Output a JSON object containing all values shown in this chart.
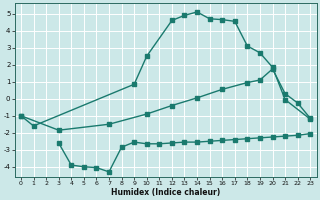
{
  "xlabel": "Humidex (Indice chaleur)",
  "bg_color": "#cce8e8",
  "grid_color": "#ffffff",
  "line_color": "#1a7a6e",
  "ylim": [
    -4.6,
    5.6
  ],
  "xlim": [
    -0.5,
    23.5
  ],
  "yticks": [
    -4,
    -3,
    -2,
    -1,
    0,
    1,
    2,
    3,
    4,
    5
  ],
  "xticks": [
    0,
    1,
    2,
    3,
    4,
    5,
    6,
    7,
    8,
    9,
    10,
    11,
    12,
    13,
    14,
    15,
    16,
    17,
    18,
    19,
    20,
    21,
    22,
    23
  ],
  "curve1_x": [
    0,
    1,
    9,
    10,
    12,
    13,
    14,
    15,
    16,
    17,
    18,
    19,
    20,
    21,
    23
  ],
  "curve1_y": [
    -1.0,
    -1.6,
    0.85,
    2.5,
    4.6,
    4.9,
    5.1,
    4.7,
    4.65,
    4.55,
    3.1,
    2.7,
    1.85,
    -0.05,
    -1.2
  ],
  "curve2_x": [
    0,
    3,
    7,
    10,
    12,
    14,
    16,
    18,
    19,
    20,
    21,
    22,
    23
  ],
  "curve2_y": [
    -1.0,
    -1.85,
    -1.5,
    -0.9,
    -0.4,
    0.05,
    0.55,
    0.95,
    1.1,
    1.75,
    0.3,
    -0.25,
    -1.15
  ],
  "curve3_x": [
    3,
    4,
    5,
    6,
    7,
    8,
    9,
    10,
    11,
    12,
    13,
    14,
    15,
    16,
    17,
    18,
    19,
    20,
    21,
    22,
    23
  ],
  "curve3_y": [
    -2.6,
    -3.9,
    -4.0,
    -4.05,
    -4.3,
    -2.85,
    -2.55,
    -2.65,
    -2.65,
    -2.6,
    -2.55,
    -2.55,
    -2.5,
    -2.45,
    -2.4,
    -2.35,
    -2.3,
    -2.25,
    -2.2,
    -2.15,
    -2.05
  ]
}
